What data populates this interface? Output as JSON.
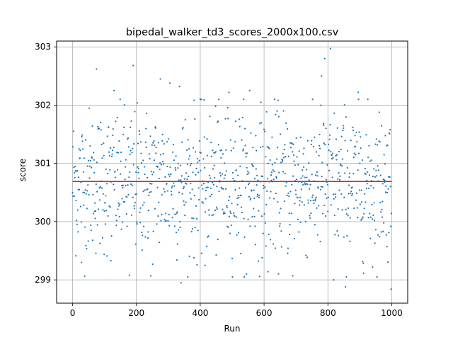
{
  "chart_data": {
    "type": "scatter",
    "title": "bipedal_walker_td3_scores_2000x100.csv",
    "xlabel": "Run",
    "ylabel": "score",
    "xlim": [
      -50,
      1050
    ],
    "ylim": [
      298.6,
      303.1
    ],
    "xticks": [
      0,
      200,
      400,
      600,
      800,
      1000
    ],
    "yticks": [
      299,
      300,
      301,
      302,
      303
    ],
    "grid": true,
    "point_color": "#1f77b4",
    "mean_line": {
      "y": 300.69,
      "x_range": [
        0,
        1000
      ],
      "color": "#d62728"
    },
    "n_points": 1000,
    "y_mean": 300.69,
    "y_std": 0.62,
    "notable_points": [
      {
        "x": 75,
        "y": 302.62
      },
      {
        "x": 190,
        "y": 302.68
      },
      {
        "x": 130,
        "y": 302.25
      },
      {
        "x": 275,
        "y": 302.45
      },
      {
        "x": 305,
        "y": 302.38
      },
      {
        "x": 335,
        "y": 302.32
      },
      {
        "x": 490,
        "y": 302.22
      },
      {
        "x": 555,
        "y": 302.25
      },
      {
        "x": 780,
        "y": 302.5
      },
      {
        "x": 790,
        "y": 302.8
      },
      {
        "x": 808,
        "y": 302.97
      },
      {
        "x": 895,
        "y": 302.22
      },
      {
        "x": 340,
        "y": 298.95
      },
      {
        "x": 855,
        "y": 298.88
      },
      {
        "x": 998,
        "y": 298.84
      },
      {
        "x": 178,
        "y": 299.08
      },
      {
        "x": 245,
        "y": 299.07
      },
      {
        "x": 415,
        "y": 299.25
      },
      {
        "x": 545,
        "y": 299.1
      },
      {
        "x": 612,
        "y": 299.14
      },
      {
        "x": 690,
        "y": 299.07
      },
      {
        "x": 818,
        "y": 299.0
      },
      {
        "x": 28,
        "y": 299.3
      },
      {
        "x": 120,
        "y": 299.33
      },
      {
        "x": 940,
        "y": 299.22
      }
    ]
  }
}
